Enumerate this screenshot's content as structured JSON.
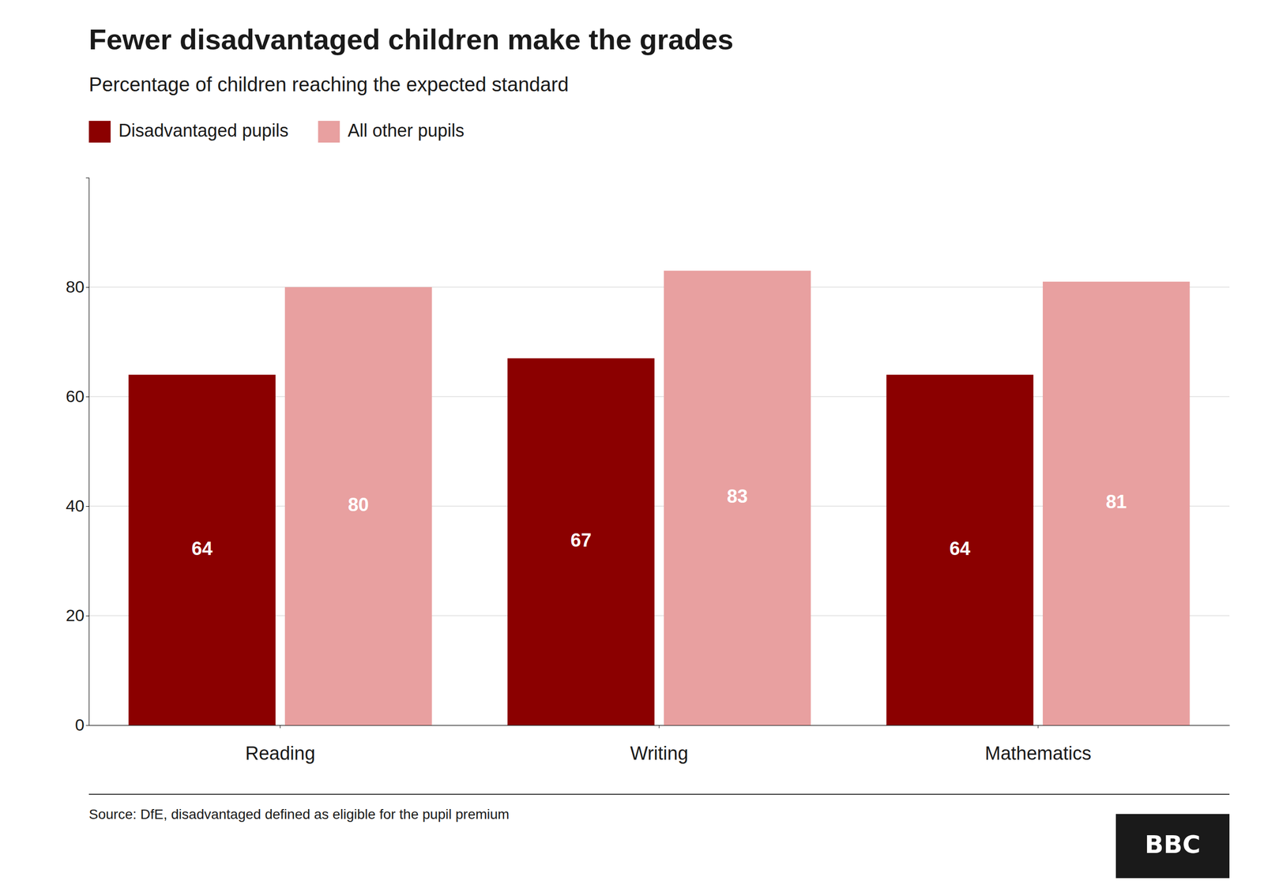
{
  "chart_data": {
    "type": "bar",
    "title": "Fewer disadvantaged children make the grades",
    "subtitle": "Percentage of children reaching the expected standard",
    "categories": [
      "Reading",
      "Writing",
      "Mathematics"
    ],
    "series": [
      {
        "name": "Disadvantaged pupils",
        "color": "#8B0000",
        "values": [
          64,
          67,
          64
        ]
      },
      {
        "name": "All other pupils",
        "color": "#E8A0A0",
        "values": [
          80,
          83,
          81
        ]
      }
    ],
    "ylim": [
      0,
      100
    ],
    "yticks": [
      0,
      20,
      40,
      60,
      80
    ],
    "grid": true,
    "legend": "top left",
    "data_labels": true,
    "source": "Source: DfE, disadvantaged defined as eligible for the pupil premium",
    "logo": "BBC"
  }
}
